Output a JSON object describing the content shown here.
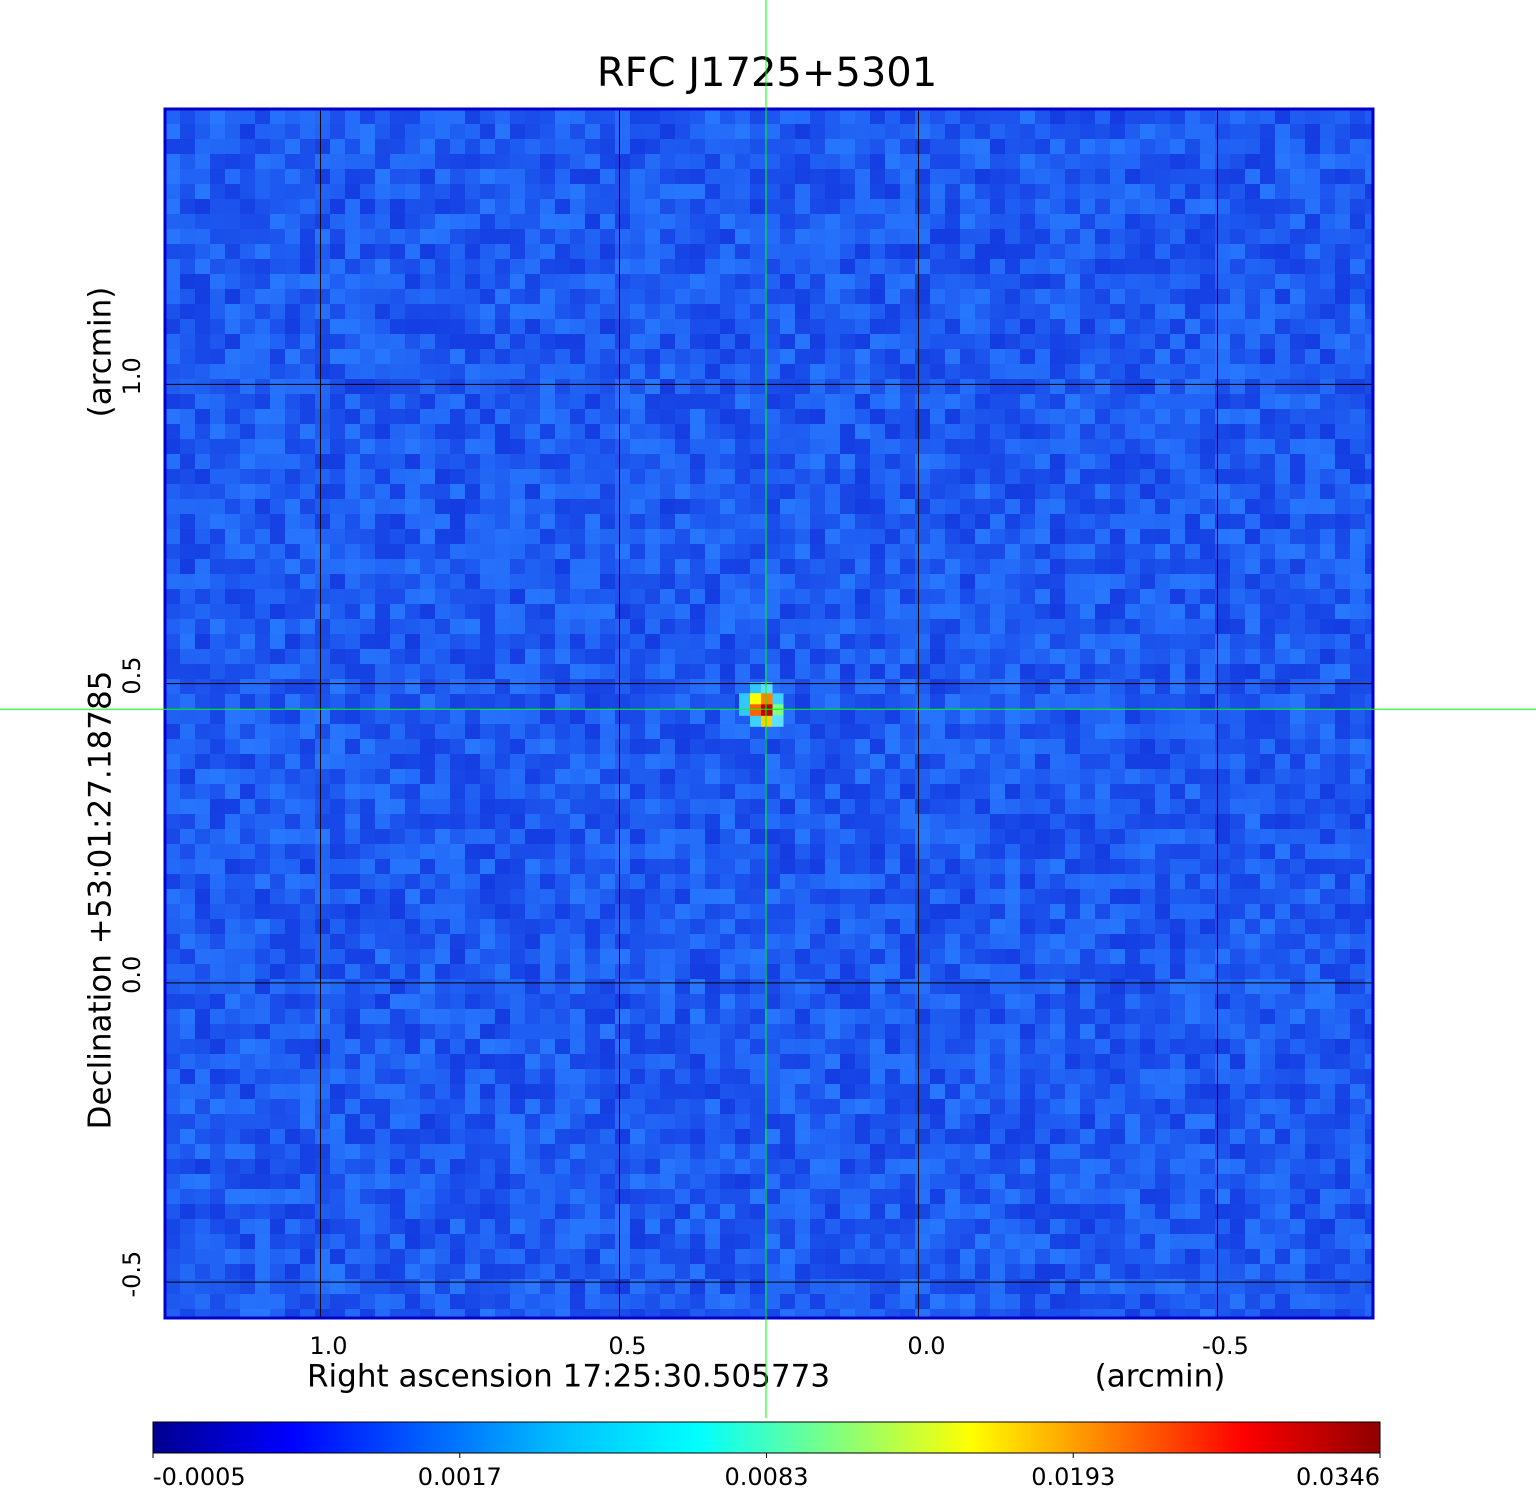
{
  "chart_data": {
    "type": "image",
    "title": "RFC J1725+5301",
    "xlabel": "Right ascension  17:25:30.505773",
    "xunit": "(arcmin)",
    "ylabel": "Declination  +53:01:27.18785",
    "yunit": "(arcmin)",
    "xlim": [
      1.26,
      -0.76
    ],
    "ylim": [
      -0.56,
      1.46
    ],
    "xticks": [
      {
        "value": 1,
        "label": "1.0"
      },
      0.5,
      {
        "value": 0,
        "label": "0.0"
      },
      -0.5
    ],
    "yticks": [
      -0.5,
      {
        "value": 0,
        "label": "0.0"
      },
      0.5,
      {
        "value": 1,
        "label": "1.0"
      }
    ],
    "grid": true,
    "frame_color": "#0000cc",
    "title_color": "#0a14d2",
    "crosshair": {
      "x": 0.255,
      "y": 0.457,
      "color": "#00ff00"
    },
    "colorbar": {
      "ticks": [
        -0.0005,
        0.0017,
        0.0083,
        0.0193,
        0.0346
      ],
      "colormap": [
        "#00008f",
        "#0000ff",
        "#0060ff",
        "#00c0ff",
        "#00ffff",
        "#80ff80",
        "#ffff00",
        "#ff8000",
        "#ff0000",
        "#900000"
      ]
    }
  }
}
